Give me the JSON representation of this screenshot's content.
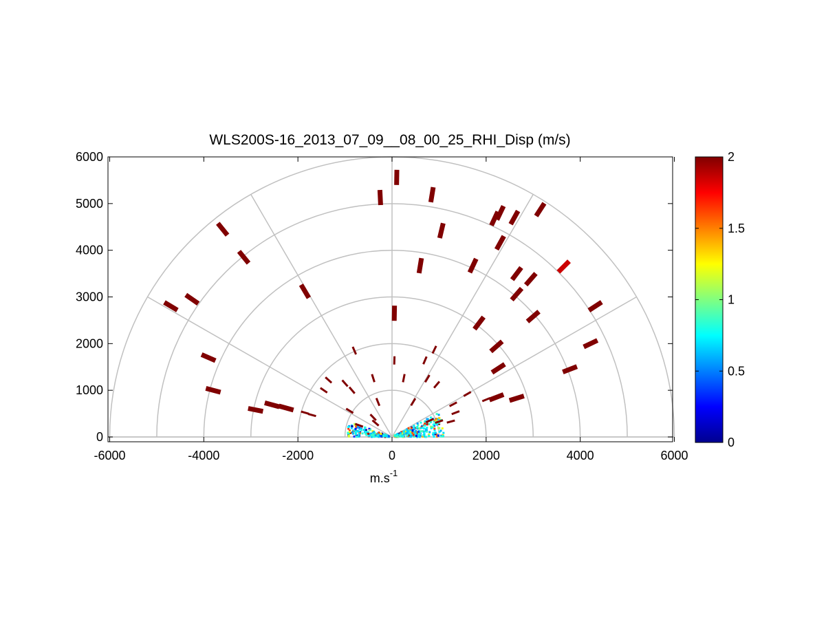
{
  "chart_data": {
    "type": "scatter",
    "title": "WLS200S-16_2013_07_09__08_00_25_RHI_Disp (m/s)",
    "xlabel_base": "m.s",
    "xlabel_exp": "-1",
    "ylabel": "",
    "xlim": [
      -6000,
      6000
    ],
    "ylim": [
      -100,
      6000
    ],
    "x_ticks": [
      "-6000",
      "-4000",
      "-2000",
      "0",
      "2000",
      "4000",
      "6000"
    ],
    "y_ticks": [
      "0",
      "1000",
      "2000",
      "3000",
      "4000",
      "5000",
      "6000"
    ],
    "polar_grid": {
      "rings": [
        1000,
        2000,
        3000,
        4000,
        5000,
        6000
      ],
      "spokes_deg": [
        0,
        30,
        60,
        90,
        120,
        150,
        180
      ],
      "color": "#c0c0c0"
    },
    "colorbar": {
      "min": 0,
      "max": 2,
      "ticks": [
        "0",
        "0.5",
        "1",
        "1.5",
        "2"
      ],
      "colormap": "jet"
    },
    "marker_color_high": "#800000",
    "points": [
      {
        "x": -4700,
        "y": 2800,
        "v": 2
      },
      {
        "x": -4250,
        "y": 2950,
        "v": 2
      },
      {
        "x": -3600,
        "y": 4450,
        "v": 2
      },
      {
        "x": -3150,
        "y": 3850,
        "v": 2
      },
      {
        "x": -1850,
        "y": 3120,
        "v": 2
      },
      {
        "x": -3900,
        "y": 1700,
        "v": 2
      },
      {
        "x": -3800,
        "y": 1000,
        "v": 2
      },
      {
        "x": -2900,
        "y": 580,
        "v": 2
      },
      {
        "x": -2550,
        "y": 690,
        "v": 2
      },
      {
        "x": -2250,
        "y": 620,
        "v": 2
      },
      {
        "x": -1850,
        "y": 520,
        "v": 2
      },
      {
        "x": -1700,
        "y": 470,
        "v": 2
      },
      {
        "x": 100,
        "y": 5560,
        "v": 2
      },
      {
        "x": -250,
        "y": 5130,
        "v": 2
      },
      {
        "x": 850,
        "y": 5190,
        "v": 2
      },
      {
        "x": 1050,
        "y": 4420,
        "v": 2
      },
      {
        "x": 600,
        "y": 3670,
        "v": 2
      },
      {
        "x": 50,
        "y": 2650,
        "v": 2
      },
      {
        "x": 2300,
        "y": 4800,
        "v": 2
      },
      {
        "x": 2600,
        "y": 4700,
        "v": 2
      },
      {
        "x": 2180,
        "y": 4680,
        "v": 2
      },
      {
        "x": 3150,
        "y": 4870,
        "v": 2
      },
      {
        "x": 2300,
        "y": 4160,
        "v": 2
      },
      {
        "x": 1720,
        "y": 3670,
        "v": 2
      },
      {
        "x": 2650,
        "y": 3500,
        "v": 2
      },
      {
        "x": 2950,
        "y": 3380,
        "v": 2
      },
      {
        "x": 3650,
        "y": 3650,
        "v": 1.85
      },
      {
        "x": 2650,
        "y": 3060,
        "v": 2
      },
      {
        "x": 4320,
        "y": 2800,
        "v": 2
      },
      {
        "x": 1850,
        "y": 2440,
        "v": 2
      },
      {
        "x": 3000,
        "y": 2580,
        "v": 2
      },
      {
        "x": 2220,
        "y": 1940,
        "v": 2
      },
      {
        "x": 2260,
        "y": 1470,
        "v": 2
      },
      {
        "x": 4220,
        "y": 2000,
        "v": 2
      },
      {
        "x": 3780,
        "y": 1450,
        "v": 2
      },
      {
        "x": 2650,
        "y": 830,
        "v": 2
      },
      {
        "x": 2220,
        "y": 850,
        "v": 2
      },
      {
        "x": 2000,
        "y": 800,
        "v": 2
      },
      {
        "x": 1600,
        "y": 920,
        "v": 2
      },
      {
        "x": 700,
        "y": 1640,
        "v": 2
      },
      {
        "x": 900,
        "y": 1870,
        "v": 2
      },
      {
        "x": 50,
        "y": 1640,
        "v": 2
      },
      {
        "x": -800,
        "y": 1850,
        "v": 2
      },
      {
        "x": -1350,
        "y": 1220,
        "v": 2
      },
      {
        "x": -1450,
        "y": 1000,
        "v": 2
      },
      {
        "x": -400,
        "y": 1260,
        "v": 2
      },
      {
        "x": 250,
        "y": 1260,
        "v": 2
      },
      {
        "x": 950,
        "y": 1120,
        "v": 2
      },
      {
        "x": 750,
        "y": 1250,
        "v": 2
      },
      {
        "x": -850,
        "y": 1000,
        "v": 2
      },
      {
        "x": -1000,
        "y": 1150,
        "v": 2
      },
      {
        "x": 1300,
        "y": 700,
        "v": 2
      },
      {
        "x": 1350,
        "y": 520,
        "v": 2
      },
      {
        "x": -900,
        "y": 560,
        "v": 2
      },
      {
        "x": -400,
        "y": 420,
        "v": 2
      },
      {
        "x": 450,
        "y": 750,
        "v": 2
      },
      {
        "x": -300,
        "y": 750,
        "v": 2
      },
      {
        "x": 1000,
        "y": 330,
        "v": 2
      },
      {
        "x": 1250,
        "y": 330,
        "v": 2
      },
      {
        "x": -700,
        "y": 250,
        "v": 2
      },
      {
        "x": -350,
        "y": 300,
        "v": 2
      },
      {
        "x": 800,
        "y": 350,
        "v": 2
      }
    ],
    "near_field_clutter": {
      "max_range": 1050,
      "spread_deg": [
        0,
        180
      ],
      "note_free": true
    }
  }
}
